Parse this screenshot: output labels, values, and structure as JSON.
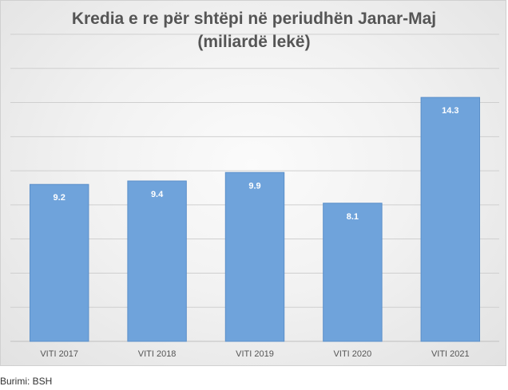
{
  "chart_data": {
    "type": "bar",
    "title_lines": [
      "Kredia e re për shtëpi në periudhën Janar-Maj",
      "(miliardë lekë)"
    ],
    "categories": [
      "VITI 2017",
      "VITI 2018",
      "VITI 2019",
      "VITI 2020",
      "VITI 2021"
    ],
    "values": [
      9.2,
      9.4,
      9.9,
      8.1,
      14.3
    ],
    "data_labels": [
      "9.2",
      "9.4",
      "9.9",
      "8.1",
      "14.3"
    ],
    "ylim": [
      0,
      18
    ],
    "grid": true,
    "legend": "none",
    "colors": {
      "bar": "#6fa3db",
      "bar_edge": "#5b8fc9",
      "grid": "#cfcfcf",
      "axis": "#bfbfbf",
      "label_text": "#ffffff",
      "tick_text": "#555555",
      "title_text": "#555555"
    }
  },
  "source": "Burimi: BSH"
}
